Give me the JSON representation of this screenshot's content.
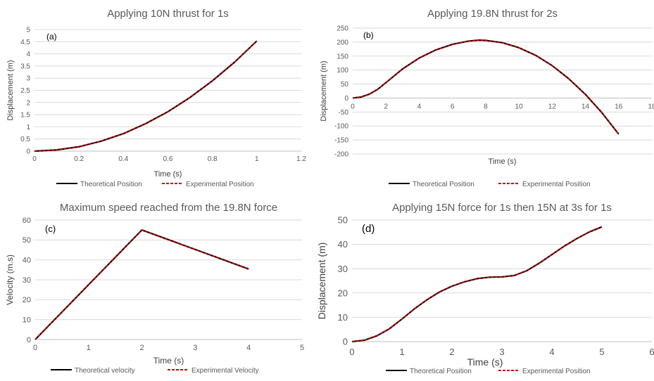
{
  "chart_data": [
    {
      "type": "line",
      "panel_label": "(a)",
      "title": "Applying 10N thrust for 1s",
      "xlabel": "Time (s)",
      "ylabel": "Displacement (m)",
      "xlim": [
        0,
        1.2
      ],
      "ylim": [
        0,
        5
      ],
      "x_ticks": [
        "0",
        "0.2",
        "0.4",
        "0.6",
        "0.8",
        "1",
        "1.2"
      ],
      "y_ticks": [
        "0",
        "0.5",
        "1",
        "1.5",
        "2",
        "2.5",
        "3",
        "3.5",
        "4",
        "4.5",
        "5"
      ],
      "grid": true,
      "legend_position": "bottom",
      "series": [
        {
          "name": "Theoretical Position",
          "color": "#000000",
          "dash": "solid",
          "x": [
            0,
            0.1,
            0.2,
            0.3,
            0.4,
            0.5,
            0.6,
            0.7,
            0.8,
            0.9,
            1.0
          ],
          "y": [
            0,
            0.05,
            0.18,
            0.41,
            0.72,
            1.13,
            1.62,
            2.21,
            2.89,
            3.66,
            4.53
          ]
        },
        {
          "name": "Experimental Position",
          "color": "#cc0000",
          "dash": "dashed",
          "x": [
            0,
            0.1,
            0.2,
            0.3,
            0.4,
            0.5,
            0.6,
            0.7,
            0.8,
            0.9,
            1.0
          ],
          "y": [
            0,
            0.05,
            0.18,
            0.41,
            0.72,
            1.13,
            1.62,
            2.21,
            2.89,
            3.66,
            4.53
          ]
        }
      ]
    },
    {
      "type": "line",
      "panel_label": "(b)",
      "title": "Applying 19.8N thrust for 2s",
      "xlabel": "Time (s)",
      "ylabel": "Displacement (m)",
      "xlim": [
        0,
        18
      ],
      "ylim": [
        -200,
        250
      ],
      "x_ticks": [
        "0",
        "2",
        "4",
        "6",
        "8",
        "10",
        "12",
        "14",
        "16",
        "18"
      ],
      "y_ticks": [
        "-200",
        "-150",
        "-100",
        "-50",
        "0",
        "50",
        "100",
        "150",
        "200",
        "250"
      ],
      "grid": true,
      "legend_position": "bottom",
      "series": [
        {
          "name": "Theoretical Position",
          "color": "#000000",
          "dash": "solid",
          "x": [
            0,
            0.5,
            1,
            1.5,
            2,
            3,
            4,
            5,
            6,
            7,
            7.6,
            8,
            9,
            10,
            11,
            12,
            13,
            14,
            15,
            16
          ],
          "y": [
            0,
            3.4,
            13.8,
            31,
            55,
            104,
            143,
            172,
            192,
            204,
            207,
            206,
            198,
            180,
            153,
            116,
            69,
            13,
            -53,
            -129
          ]
        },
        {
          "name": "Experimental Position",
          "color": "#cc0000",
          "dash": "dashed",
          "x": [
            0,
            0.5,
            1,
            1.5,
            2,
            3,
            4,
            5,
            6,
            7,
            7.6,
            8,
            9,
            10,
            11,
            12,
            13,
            14,
            15,
            16
          ],
          "y": [
            0,
            3.4,
            13.8,
            31,
            55,
            104,
            143,
            172,
            192,
            204,
            207,
            206,
            198,
            180,
            153,
            116,
            69,
            13,
            -53,
            -129
          ]
        }
      ]
    },
    {
      "type": "line",
      "panel_label": "(c)",
      "title": "Maximum speed reached from the 19.8N force",
      "xlabel": "Time (s)",
      "ylabel": "Velocity (m.s)",
      "xlim": [
        0,
        5
      ],
      "ylim": [
        0,
        60
      ],
      "x_ticks": [
        "0",
        "1",
        "2",
        "3",
        "4",
        "5"
      ],
      "y_ticks": [
        "0",
        "10",
        "20",
        "30",
        "40",
        "50",
        "60"
      ],
      "grid": true,
      "legend_position": "bottom",
      "series": [
        {
          "name": "Theoretical velocity",
          "color": "#000000",
          "dash": "solid",
          "x": [
            0,
            2,
            4
          ],
          "y": [
            0,
            55,
            35.4
          ]
        },
        {
          "name": "Experimental Velocity",
          "color": "#cc0000",
          "dash": "dashed",
          "x": [
            0,
            2,
            4
          ],
          "y": [
            0,
            55,
            35.4
          ]
        }
      ]
    },
    {
      "type": "line",
      "panel_label": "(d)",
      "title": "Applying 15N force for 1s then 15N at 3s for 1s",
      "xlabel": "Time (s)",
      "ylabel": "Displacement (m)",
      "xlim": [
        0,
        6
      ],
      "ylim": [
        0,
        50
      ],
      "x_ticks": [
        "0",
        "1",
        "2",
        "3",
        "4",
        "5",
        "6"
      ],
      "y_ticks": [
        "0",
        "10",
        "20",
        "30",
        "40",
        "50"
      ],
      "grid": true,
      "legend_position": "bottom",
      "series": [
        {
          "name": "Theoretical Position",
          "color": "#000000",
          "dash": "solid",
          "x": [
            0,
            0.25,
            0.5,
            0.75,
            1,
            1.25,
            1.5,
            1.75,
            2,
            2.25,
            2.5,
            2.75,
            3,
            3.25,
            3.5,
            3.75,
            4,
            4.25,
            4.5,
            4.75,
            5
          ],
          "y": [
            0,
            0.6,
            2.4,
            5.3,
            9.3,
            13.5,
            17.2,
            20.4,
            22.8,
            24.6,
            25.9,
            26.5,
            26.6,
            27.2,
            29.2,
            32.3,
            35.8,
            39.3,
            42.4,
            45.1,
            47.2
          ]
        },
        {
          "name": "Experimental Position",
          "color": "#cc0000",
          "dash": "dashed",
          "x": [
            0,
            0.25,
            0.5,
            0.75,
            1,
            1.25,
            1.5,
            1.75,
            2,
            2.25,
            2.5,
            2.75,
            3,
            3.25,
            3.5,
            3.75,
            4,
            4.25,
            4.5,
            4.75,
            5
          ],
          "y": [
            0,
            0.6,
            2.4,
            5.3,
            9.3,
            13.5,
            17.2,
            20.4,
            22.8,
            24.6,
            25.9,
            26.5,
            26.6,
            27.2,
            29.2,
            32.3,
            35.8,
            39.3,
            42.4,
            45.1,
            47.2
          ]
        }
      ]
    }
  ]
}
